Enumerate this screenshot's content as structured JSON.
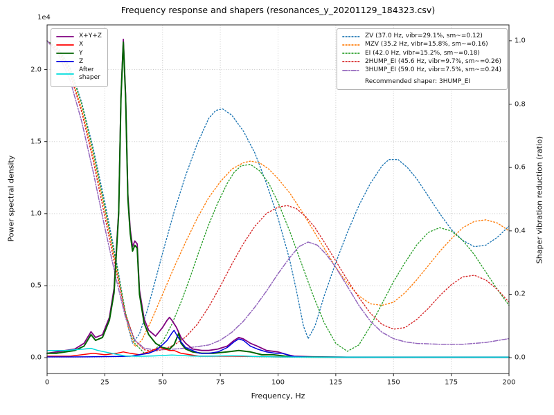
{
  "chart_data": {
    "type": "line",
    "title": "Frequency response and shapers (resonances_y_20201129_184323.csv)",
    "xlabel": "Frequency, Hz",
    "ylabel_left": "Power spectral density",
    "ylabel_left_offset": "1e4",
    "ylabel_right": "Shaper vibration reduction (ratio)",
    "xlim": [
      0,
      200
    ],
    "ylim_left": [
      -0.11,
      2.31
    ],
    "ylim_right": [
      -0.05,
      1.05
    ],
    "grid": true,
    "x_ticks": [
      0,
      25,
      50,
      75,
      100,
      125,
      150,
      175,
      200
    ],
    "x_tick_labels": [
      "0",
      "25",
      "50",
      "75",
      "100",
      "125",
      "150",
      "175",
      "200"
    ],
    "y_left_ticks": [
      0.0,
      0.5,
      1.0,
      1.5,
      2.0
    ],
    "y_left_tick_labels": [
      "0.0",
      "0.5",
      "1.0",
      "1.5",
      "2.0"
    ],
    "y_right_ticks": [
      0.0,
      0.2,
      0.4,
      0.6,
      0.8,
      1.0
    ],
    "y_right_tick_labels": [
      "0.0",
      "0.2",
      "0.4",
      "0.6",
      "0.8",
      "1.0"
    ],
    "recommendation": "Recommended shaper: 3HUMP_EI",
    "psd_units": "1e4",
    "psd_series": [
      {
        "key": "xyz",
        "name": "X+Y+Z",
        "color": "#800080",
        "dash": "solid",
        "width": 1.8,
        "axis": "left",
        "x": [
          0,
          4,
          8,
          12,
          16,
          19,
          21,
          24,
          27,
          29,
          31,
          32,
          33,
          34,
          35,
          36,
          37,
          38,
          39,
          40,
          42,
          44,
          47,
          50,
          52,
          53,
          54,
          56,
          58,
          60,
          63,
          67,
          70,
          74,
          78,
          81,
          83,
          85,
          88,
          91,
          95,
          100,
          104,
          107,
          115,
          130,
          150,
          175,
          200
        ],
        "y": [
          0.03,
          0.04,
          0.05,
          0.06,
          0.1,
          0.18,
          0.14,
          0.16,
          0.28,
          0.48,
          1.02,
          1.82,
          2.21,
          1.83,
          1.13,
          0.89,
          0.77,
          0.81,
          0.79,
          0.47,
          0.27,
          0.19,
          0.15,
          0.21,
          0.26,
          0.28,
          0.26,
          0.21,
          0.14,
          0.1,
          0.06,
          0.05,
          0.05,
          0.06,
          0.08,
          0.12,
          0.14,
          0.13,
          0.1,
          0.08,
          0.05,
          0.04,
          0.02,
          0.01,
          0.006,
          0.004,
          0.004,
          0.004,
          0.004
        ]
      },
      {
        "key": "x",
        "name": "X",
        "color": "#ff0000",
        "dash": "solid",
        "width": 1.5,
        "axis": "left",
        "x": [
          0,
          5,
          10,
          15,
          20,
          25,
          30,
          33,
          36,
          40,
          44,
          47,
          49,
          51,
          53,
          55,
          58,
          62,
          66,
          70,
          80,
          90,
          100,
          110,
          130,
          160,
          200
        ],
        "y": [
          0.01,
          0.01,
          0.01,
          0.02,
          0.03,
          0.02,
          0.03,
          0.04,
          0.03,
          0.02,
          0.04,
          0.06,
          0.07,
          0.06,
          0.05,
          0.05,
          0.03,
          0.02,
          0.01,
          0.01,
          0.01,
          0.008,
          0.005,
          0.004,
          0.003,
          0.003,
          0.003
        ]
      },
      {
        "key": "y",
        "name": "Y",
        "color": "#006400",
        "dash": "solid",
        "width": 2.0,
        "axis": "left",
        "x": [
          0,
          4,
          8,
          12,
          16,
          19,
          21,
          24,
          27,
          29,
          31,
          32,
          33,
          34,
          35,
          36,
          37,
          38,
          39,
          40,
          42,
          44,
          47,
          50,
          53,
          55,
          56,
          57,
          58,
          60,
          63,
          67,
          72,
          78,
          83,
          88,
          93,
          98,
          103,
          107,
          115,
          130,
          150,
          175,
          200
        ],
        "y": [
          0.03,
          0.03,
          0.04,
          0.05,
          0.08,
          0.16,
          0.12,
          0.14,
          0.26,
          0.45,
          1.0,
          1.8,
          2.19,
          1.8,
          1.1,
          0.86,
          0.74,
          0.78,
          0.76,
          0.44,
          0.24,
          0.16,
          0.1,
          0.07,
          0.06,
          0.09,
          0.13,
          0.17,
          0.1,
          0.06,
          0.04,
          0.03,
          0.03,
          0.04,
          0.05,
          0.04,
          0.02,
          0.02,
          0.01,
          0.005,
          0.004,
          0.003,
          0.003,
          0.003,
          0.003
        ]
      },
      {
        "key": "z",
        "name": "Z",
        "color": "#0000e0",
        "dash": "solid",
        "width": 1.5,
        "axis": "left",
        "x": [
          0,
          10,
          20,
          30,
          36,
          40,
          44,
          47,
          50,
          52,
          54,
          55,
          56,
          58,
          60,
          63,
          66,
          70,
          74,
          78,
          81,
          83,
          85,
          88,
          91,
          95,
          99,
          102,
          104,
          106,
          108,
          115,
          130,
          150,
          175,
          200
        ],
        "y": [
          0.005,
          0.005,
          0.006,
          0.008,
          0.01,
          0.02,
          0.03,
          0.05,
          0.09,
          0.12,
          0.17,
          0.19,
          0.16,
          0.11,
          0.07,
          0.05,
          0.03,
          0.03,
          0.04,
          0.07,
          0.11,
          0.13,
          0.12,
          0.08,
          0.06,
          0.04,
          0.03,
          0.03,
          0.02,
          0.01,
          0.006,
          0.004,
          0.003,
          0.003,
          0.003,
          0.003
        ]
      },
      {
        "key": "after-shaper",
        "name": "After\nshaper",
        "color": "#00dddd",
        "dash": "solid",
        "width": 1.5,
        "axis": "left",
        "x": [
          0,
          4,
          8,
          12,
          16,
          19,
          22,
          25,
          28,
          31,
          34,
          38,
          42,
          46,
          50,
          54,
          58,
          62,
          66,
          70,
          75,
          80,
          85,
          90,
          100,
          110,
          125,
          150,
          175,
          200
        ],
        "y": [
          0.05,
          0.05,
          0.05,
          0.055,
          0.06,
          0.065,
          0.05,
          0.04,
          0.03,
          0.02,
          0.012,
          0.01,
          0.01,
          0.012,
          0.015,
          0.018,
          0.015,
          0.012,
          0.01,
          0.01,
          0.012,
          0.013,
          0.012,
          0.008,
          0.005,
          0.004,
          0.004,
          0.004,
          0.004,
          0.004
        ]
      }
    ],
    "shaper_series": [
      {
        "key": "zv",
        "name": "ZV (37.0 Hz, vibr=29.1%, sm~=0.12)",
        "color": "#1f77b4",
        "dash": "dotted",
        "width": 1.4,
        "axis": "right",
        "x": [
          0,
          5,
          10,
          15,
          20,
          25,
          30,
          33,
          35,
          37,
          40,
          43,
          46,
          50,
          55,
          60,
          65,
          70,
          73,
          76,
          80,
          85,
          90,
          95,
          100,
          105,
          108,
          111,
          113,
          116,
          120,
          125,
          130,
          135,
          140,
          145,
          148,
          152,
          156,
          160,
          165,
          170,
          175,
          180,
          185,
          190,
          195,
          200
        ],
        "y": [
          1.0,
          0.975,
          0.915,
          0.805,
          0.66,
          0.49,
          0.305,
          0.18,
          0.1,
          0.045,
          0.075,
          0.14,
          0.22,
          0.33,
          0.46,
          0.575,
          0.675,
          0.755,
          0.78,
          0.785,
          0.765,
          0.715,
          0.645,
          0.55,
          0.44,
          0.31,
          0.21,
          0.1,
          0.06,
          0.1,
          0.195,
          0.3,
          0.395,
          0.48,
          0.55,
          0.605,
          0.625,
          0.625,
          0.6,
          0.565,
          0.51,
          0.455,
          0.405,
          0.37,
          0.35,
          0.355,
          0.38,
          0.415
        ]
      },
      {
        "key": "mzv",
        "name": "MZV (35.2 Hz, vibr=15.8%, sm~=0.16)",
        "color": "#ff7f0e",
        "dash": "dotted",
        "width": 1.4,
        "axis": "right",
        "x": [
          0,
          5,
          10,
          15,
          20,
          25,
          30,
          33,
          35,
          38,
          41,
          45,
          50,
          55,
          60,
          65,
          70,
          75,
          80,
          85,
          88,
          92,
          96,
          100,
          105,
          110,
          115,
          120,
          125,
          130,
          135,
          140,
          145,
          150,
          155,
          160,
          165,
          170,
          175,
          180,
          185,
          190,
          195,
          200
        ],
        "y": [
          1.0,
          0.97,
          0.9,
          0.785,
          0.635,
          0.465,
          0.285,
          0.17,
          0.1,
          0.035,
          0.055,
          0.115,
          0.2,
          0.285,
          0.365,
          0.44,
          0.505,
          0.555,
          0.595,
          0.615,
          0.62,
          0.615,
          0.595,
          0.565,
          0.52,
          0.465,
          0.405,
          0.345,
          0.285,
          0.235,
          0.195,
          0.17,
          0.165,
          0.175,
          0.205,
          0.245,
          0.29,
          0.335,
          0.375,
          0.41,
          0.43,
          0.435,
          0.425,
          0.4
        ]
      },
      {
        "key": "ei",
        "name": "EI (42.0 Hz, vibr=15.2%, sm~=0.18)",
        "color": "#2ca02c",
        "dash": "dotted",
        "width": 1.4,
        "axis": "right",
        "x": [
          0,
          5,
          10,
          15,
          20,
          25,
          30,
          34,
          38,
          42,
          46,
          50,
          54,
          58,
          62,
          66,
          70,
          74,
          78,
          81,
          84,
          88,
          92,
          96,
          100,
          105,
          110,
          115,
          120,
          125,
          130,
          135,
          140,
          145,
          150,
          155,
          160,
          165,
          170,
          175,
          180,
          185,
          190,
          195,
          200
        ],
        "y": [
          1.0,
          0.975,
          0.91,
          0.8,
          0.65,
          0.475,
          0.295,
          0.14,
          0.045,
          0.015,
          0.02,
          0.05,
          0.105,
          0.175,
          0.255,
          0.34,
          0.42,
          0.49,
          0.55,
          0.585,
          0.605,
          0.61,
          0.59,
          0.55,
          0.49,
          0.4,
          0.3,
          0.2,
          0.11,
          0.045,
          0.02,
          0.04,
          0.1,
          0.17,
          0.24,
          0.3,
          0.355,
          0.395,
          0.41,
          0.4,
          0.37,
          0.325,
          0.27,
          0.215,
          0.165
        ]
      },
      {
        "key": "2hump-ei",
        "name": "2HUMP_EI (45.6 Hz, vibr=9.7%, sm~=0.26)",
        "color": "#d62728",
        "dash": "dotted",
        "width": 1.4,
        "axis": "right",
        "x": [
          0,
          5,
          10,
          15,
          20,
          25,
          30,
          34,
          38,
          42,
          46,
          50,
          55,
          60,
          65,
          70,
          75,
          80,
          85,
          90,
          95,
          100,
          104,
          108,
          112,
          116,
          120,
          125,
          130,
          135,
          140,
          145,
          150,
          155,
          160,
          165,
          170,
          175,
          180,
          185,
          190,
          195,
          200
        ],
        "y": [
          1.0,
          0.965,
          0.895,
          0.775,
          0.62,
          0.445,
          0.27,
          0.135,
          0.055,
          0.025,
          0.02,
          0.025,
          0.04,
          0.065,
          0.105,
          0.16,
          0.225,
          0.295,
          0.36,
          0.415,
          0.455,
          0.475,
          0.48,
          0.47,
          0.445,
          0.41,
          0.365,
          0.305,
          0.245,
          0.19,
          0.14,
          0.105,
          0.09,
          0.095,
          0.12,
          0.155,
          0.195,
          0.23,
          0.255,
          0.26,
          0.245,
          0.215,
          0.175
        ]
      },
      {
        "key": "3hump-ei",
        "name": "3HUMP_EI (59.0 Hz, vibr=7.5%, sm~=0.24)",
        "color": "#9467bd",
        "dash": "dashdot",
        "width": 1.5,
        "axis": "right",
        "x": [
          0,
          5,
          10,
          15,
          20,
          25,
          30,
          34,
          38,
          42,
          46,
          50,
          55,
          60,
          65,
          70,
          75,
          80,
          85,
          90,
          95,
          100,
          105,
          109,
          113,
          117,
          121,
          125,
          130,
          135,
          140,
          145,
          150,
          155,
          160,
          170,
          180,
          190,
          200
        ],
        "y": [
          1.0,
          0.955,
          0.875,
          0.745,
          0.585,
          0.41,
          0.245,
          0.125,
          0.055,
          0.03,
          0.025,
          0.025,
          0.027,
          0.03,
          0.035,
          0.04,
          0.055,
          0.08,
          0.115,
          0.16,
          0.21,
          0.265,
          0.315,
          0.35,
          0.365,
          0.355,
          0.325,
          0.285,
          0.225,
          0.165,
          0.115,
          0.08,
          0.06,
          0.05,
          0.045,
          0.042,
          0.042,
          0.048,
          0.06
        ]
      }
    ]
  }
}
